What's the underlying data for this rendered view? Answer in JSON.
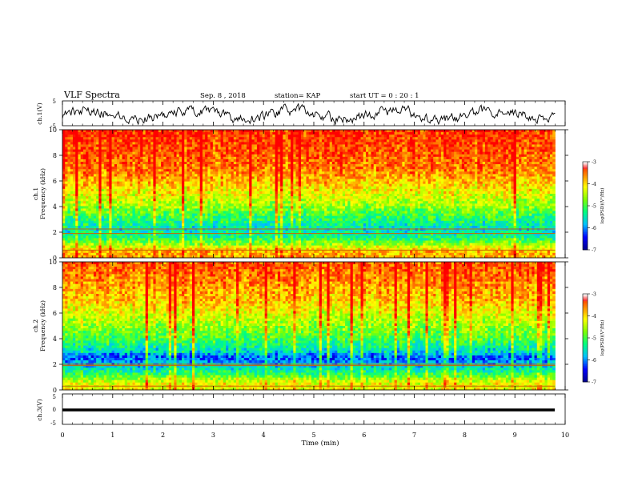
{
  "header": {
    "title": "VLF Spectra",
    "date": "Sep. 8 , 2018",
    "station": "station= KAP",
    "start": "start UT =  0 : 20 : 1"
  },
  "chart_data": [
    {
      "id": "ch1-waveform",
      "type": "line",
      "ylabel": "ch.1(V)",
      "ylim": [
        -5,
        5
      ],
      "y_ticks": [
        "5",
        "-5"
      ],
      "xlim": [
        0,
        10
      ],
      "description_points": "noisy waveform, data ends near 9.8 min"
    },
    {
      "id": "ch1-spectrogram",
      "type": "heatmap",
      "ylabel": "ch.1\nFrequency (kHz)",
      "ylabel_lines": [
        "ch.1",
        "Frequency (kHz)"
      ],
      "ylim": [
        0,
        10
      ],
      "y_ticks": [
        "0",
        "2",
        "4",
        "6",
        "8",
        "10"
      ],
      "xlim": [
        0,
        10
      ],
      "colorbar": {
        "label": "log(PSD)(V²/Hz)",
        "ticks": [
          "-3",
          "-4",
          "-5",
          "-6",
          "-7"
        ],
        "range": [
          -7,
          -3
        ]
      },
      "band_profile": [
        {
          "f": 9.5,
          "level": -3.2
        },
        {
          "f": 7,
          "level": -3.5
        },
        {
          "f": 5,
          "level": -4.2
        },
        {
          "f": 4,
          "level": -4.6
        },
        {
          "f": 3,
          "level": -5.2
        },
        {
          "f": 2.2,
          "level": -5.6
        },
        {
          "f": 1.5,
          "level": -5.2
        },
        {
          "f": 0.5,
          "level": -3.8
        }
      ],
      "lines_khz": [
        2.25,
        1.9,
        0.6
      ]
    },
    {
      "id": "ch2-spectrogram",
      "type": "heatmap",
      "ylabel_lines": [
        "ch.2",
        "Frequency (kHz)"
      ],
      "ylim": [
        0,
        10
      ],
      "y_ticks": [
        "0",
        "2",
        "4",
        "6",
        "8",
        "10"
      ],
      "xlim": [
        0,
        10
      ],
      "colorbar": {
        "label": "log(PSD)(V²/Hz)",
        "ticks": [
          "-3",
          "-4",
          "-5",
          "-6",
          "-7"
        ],
        "range": [
          -7,
          -3
        ]
      },
      "band_profile": [
        {
          "f": 9.5,
          "level": -3.4
        },
        {
          "f": 7,
          "level": -3.9
        },
        {
          "f": 5,
          "level": -4.6
        },
        {
          "f": 4,
          "level": -5.0
        },
        {
          "f": 3,
          "level": -5.6
        },
        {
          "f": 2.5,
          "level": -6.2
        },
        {
          "f": 1.5,
          "level": -5.4
        },
        {
          "f": 0.5,
          "level": -4.2
        }
      ],
      "lines_khz": [
        2.0,
        1.9,
        0.3
      ]
    },
    {
      "id": "ch3-waveform",
      "type": "line",
      "ylabel": "ch.3(V)",
      "ylim": [
        -5,
        5
      ],
      "y_ticks": [
        "5",
        "0",
        "-5"
      ],
      "xlim": [
        0,
        10
      ],
      "values_note": "flat near 0 V"
    }
  ],
  "xaxis": {
    "label": "Time (min)",
    "ticks": [
      "0",
      "1",
      "2",
      "3",
      "4",
      "5",
      "6",
      "7",
      "8",
      "9",
      "10"
    ]
  },
  "colors": {
    "colormap": [
      "#00008b",
      "#0000ff",
      "#00c0ff",
      "#00ff80",
      "#80ff00",
      "#ffff00",
      "#ff8000",
      "#ff0000",
      "#ffffff"
    ]
  }
}
